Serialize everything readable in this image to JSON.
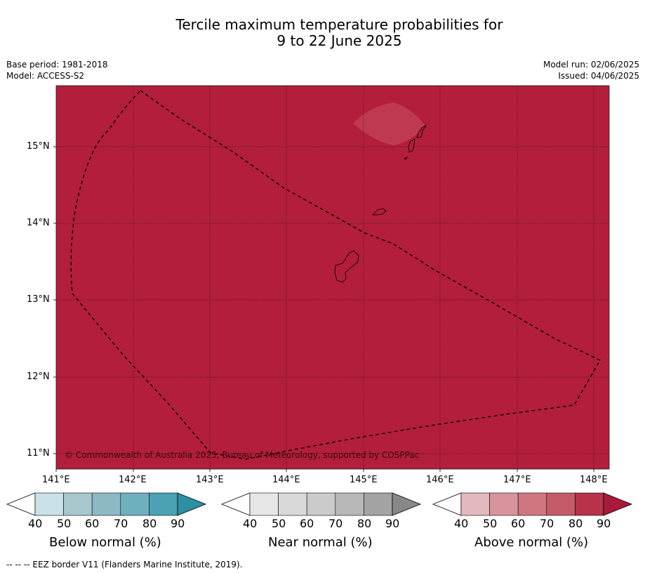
{
  "title": {
    "line1": "Tercile maximum temperature probabilities for",
    "line2": "9 to 22 June 2025"
  },
  "meta": {
    "base_period": "Base period: 1981-2018",
    "model": "Model: ACCESS-S2",
    "model_run": "Model run: 02/06/2025",
    "issued": "Issued: 04/06/2025"
  },
  "map": {
    "fill_color": "#b21e3b",
    "patch_color": "#bf3a50",
    "copyright": "© Commonwealth of Australia 2025, Bureau of Meteorology, supported by COSPPac",
    "lon_labels": [
      "141°E",
      "142°E",
      "143°E",
      "144°E",
      "145°E",
      "146°E",
      "147°E",
      "148°E"
    ],
    "lat_labels": [
      "15°N",
      "14°N",
      "13°N",
      "12°N",
      "11°N"
    ]
  },
  "colorbars": [
    {
      "title": "Below normal (%)",
      "ticks": [
        "40",
        "50",
        "60",
        "70",
        "80",
        "90"
      ],
      "colors": [
        "#ffffff",
        "#c9e1e8",
        "#a8c7cd",
        "#8db9c4",
        "#6fb0bf",
        "#4aa2b4",
        "#2e8fa5"
      ]
    },
    {
      "title": "Near normal (%)",
      "ticks": [
        "40",
        "50",
        "60",
        "70",
        "80",
        "90"
      ],
      "colors": [
        "#ffffff",
        "#e6e6e6",
        "#d9d9d9",
        "#cbcbcb",
        "#b8b8b8",
        "#a3a3a3",
        "#888888"
      ]
    },
    {
      "title": "Above normal (%)",
      "ticks": [
        "40",
        "50",
        "60",
        "70",
        "80",
        "90"
      ],
      "colors": [
        "#ffffff",
        "#e4b8bf",
        "#d8939d",
        "#cf7680",
        "#c55a69",
        "#b83249",
        "#a81a39"
      ]
    }
  ],
  "footnote": "--  --  -- EEZ border V11 (Flanders Marine Institute, 2019)."
}
